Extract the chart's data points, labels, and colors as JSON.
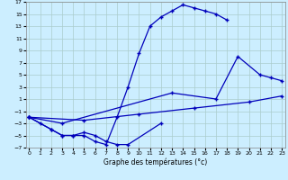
{
  "xlabel": "Graphe des températures (°c)",
  "ylim": [
    -7,
    17
  ],
  "yticks": [
    -7,
    -5,
    -3,
    -1,
    1,
    3,
    5,
    7,
    9,
    11,
    13,
    15,
    17
  ],
  "xticks": [
    0,
    1,
    2,
    3,
    4,
    5,
    6,
    7,
    8,
    9,
    10,
    11,
    12,
    13,
    14,
    15,
    16,
    17,
    18,
    19,
    20,
    21,
    22,
    23
  ],
  "line1_x": [
    0,
    1,
    2,
    3,
    4,
    5,
    6,
    7,
    8,
    9,
    10,
    11,
    12,
    13,
    14,
    15,
    16,
    17,
    18
  ],
  "line1_y": [
    -2,
    -3,
    -4,
    -5,
    -5,
    -5,
    -6,
    -6.5,
    -2,
    3,
    8.5,
    13,
    14.5,
    15.5,
    16.5,
    16,
    15.5,
    15,
    14
  ],
  "line2_x": [
    0,
    2,
    3,
    4,
    5,
    6,
    7,
    8,
    9,
    12
  ],
  "line2_y": [
    -2,
    -4,
    -5,
    -5,
    -4.5,
    -5,
    -6,
    -6.5,
    -6.5,
    -3
  ],
  "line3_x": [
    0,
    3,
    13,
    17,
    19,
    21,
    22,
    23
  ],
  "line3_y": [
    -2,
    -3,
    2,
    1,
    8,
    5,
    4.5,
    4
  ],
  "line4_x": [
    0,
    5,
    10,
    15,
    20,
    23
  ],
  "line4_y": [
    -2,
    -2.5,
    -1.5,
    -0.5,
    0.5,
    1.5
  ],
  "line_color": "#0000bb",
  "bg_color": "#cceeff",
  "grid_color": "#aacccc"
}
